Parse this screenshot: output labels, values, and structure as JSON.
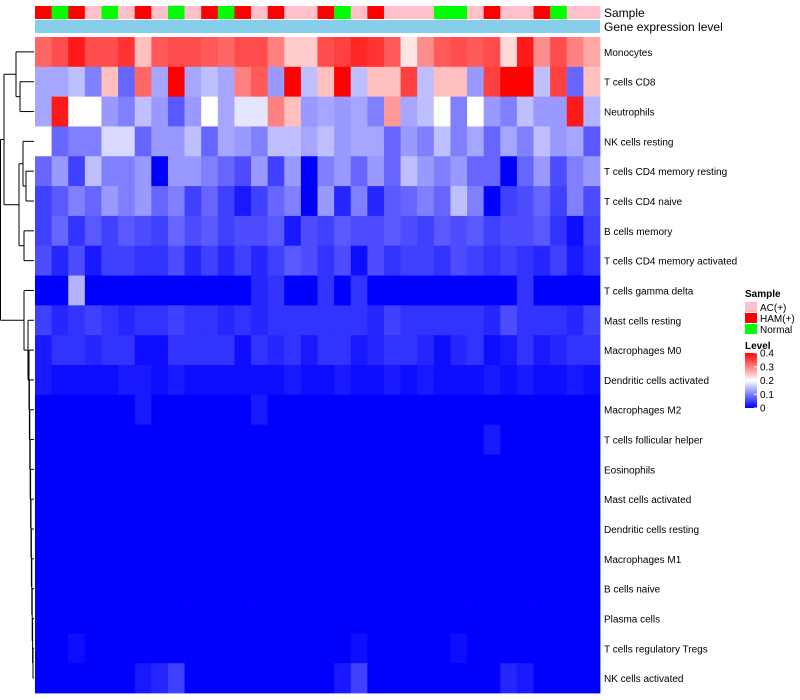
{
  "chart_data": {
    "type": "heatmap",
    "title": "",
    "annotations": [
      {
        "name": "Sample"
      },
      {
        "name": "Gene expression level"
      }
    ],
    "rows": [
      "Monocytes",
      "T cells CD8",
      "Neutrophils",
      "NK cells resting",
      "T cells CD4 memory resting",
      "T cells CD4 naive",
      "B cells memory",
      "T cells CD4 memory activated",
      "T cells gamma delta",
      "Mast cells resting",
      "Macrophages M0",
      "Dendritic cells activated",
      "Macrophages M2",
      "T cells follicular helper",
      "Eosinophils",
      "Mast cells activated",
      "Dendritic cells resting",
      "Macrophages M1",
      "B cells naive",
      "Plasma cells",
      "T cells regulatory  Tregs",
      "NK cells activated"
    ],
    "sample_groups": [
      "HAM(+)",
      "Normal",
      "HAM(+)",
      "AC(+)",
      "Normal",
      "AC(+)",
      "HAM(+)",
      "AC(+)",
      "Normal",
      "AC(+)",
      "HAM(+)",
      "Normal",
      "HAM(+)",
      "AC(+)",
      "HAM(+)",
      "AC(+)",
      "AC(+)",
      "HAM(+)",
      "Normal",
      "AC(+)",
      "HAM(+)",
      "AC(+)",
      "AC(+)",
      "AC(+)",
      "Normal",
      "Normal",
      "AC(+)",
      "HAM(+)",
      "AC(+)",
      "AC(+)",
      "HAM(+)",
      "Normal",
      "AC(+)",
      "AC(+)"
    ],
    "values": [
      [
        0.32,
        0.34,
        0.38,
        0.34,
        0.34,
        0.36,
        0.25,
        0.33,
        0.34,
        0.34,
        0.33,
        0.32,
        0.34,
        0.34,
        0.3,
        0.24,
        0.24,
        0.34,
        0.35,
        0.37,
        0.36,
        0.33,
        0.22,
        0.29,
        0.33,
        0.34,
        0.33,
        0.34,
        0.23,
        0.38,
        0.29,
        0.34,
        0.3,
        0.27
      ],
      [
        0.13,
        0.13,
        0.15,
        0.1,
        0.25,
        0.08,
        0.32,
        0.13,
        0.4,
        0.13,
        0.15,
        0.13,
        0.3,
        0.33,
        0.12,
        0.4,
        0.15,
        0.25,
        0.4,
        0.15,
        0.25,
        0.25,
        0.35,
        0.15,
        0.25,
        0.25,
        0.12,
        0.35,
        0.4,
        0.4,
        0.15,
        0.35,
        0.08,
        0.25
      ],
      [
        0.13,
        0.38,
        0.2,
        0.2,
        0.12,
        0.1,
        0.15,
        0.12,
        0.07,
        0.12,
        0.2,
        0.13,
        0.18,
        0.18,
        0.3,
        0.25,
        0.12,
        0.13,
        0.12,
        0.13,
        0.1,
        0.28,
        0.13,
        0.15,
        0.2,
        0.1,
        0.2,
        0.12,
        0.1,
        0.15,
        0.12,
        0.12,
        0.38,
        0.14
      ],
      [
        0.2,
        0.08,
        0.1,
        0.1,
        0.17,
        0.17,
        0.08,
        0.12,
        0.12,
        0.15,
        0.08,
        0.13,
        0.12,
        0.1,
        0.15,
        0.15,
        0.13,
        0.15,
        0.12,
        0.13,
        0.13,
        0.08,
        0.12,
        0.1,
        0.15,
        0.1,
        0.13,
        0.08,
        0.13,
        0.1,
        0.15,
        0.12,
        0.13,
        0.07
      ],
      [
        0.08,
        0.12,
        0.05,
        0.15,
        0.1,
        0.1,
        0.12,
        0.0,
        0.12,
        0.12,
        0.1,
        0.08,
        0.06,
        0.12,
        0.05,
        0.12,
        0.0,
        0.1,
        0.12,
        0.08,
        0.12,
        0.08,
        0.15,
        0.12,
        0.1,
        0.12,
        0.08,
        0.08,
        0.0,
        0.08,
        0.12,
        0.06,
        0.1,
        0.12
      ],
      [
        0.05,
        0.07,
        0.1,
        0.08,
        0.12,
        0.1,
        0.12,
        0.08,
        0.1,
        0.05,
        0.08,
        0.05,
        0.02,
        0.05,
        0.08,
        0.1,
        0.0,
        0.12,
        0.03,
        0.1,
        0.03,
        0.07,
        0.08,
        0.1,
        0.08,
        0.15,
        0.1,
        0.0,
        0.05,
        0.06,
        0.08,
        0.05,
        0.1,
        0.06
      ],
      [
        0.05,
        0.08,
        0.04,
        0.07,
        0.05,
        0.07,
        0.06,
        0.05,
        0.08,
        0.06,
        0.07,
        0.05,
        0.06,
        0.06,
        0.07,
        0.02,
        0.06,
        0.05,
        0.07,
        0.06,
        0.06,
        0.07,
        0.06,
        0.05,
        0.07,
        0.06,
        0.07,
        0.05,
        0.06,
        0.06,
        0.07,
        0.04,
        0.01,
        0.05
      ],
      [
        0.06,
        0.03,
        0.06,
        0.02,
        0.05,
        0.05,
        0.04,
        0.04,
        0.06,
        0.03,
        0.05,
        0.03,
        0.05,
        0.03,
        0.05,
        0.07,
        0.06,
        0.04,
        0.06,
        0.01,
        0.06,
        0.04,
        0.05,
        0.05,
        0.04,
        0.06,
        0.05,
        0.04,
        0.05,
        0.04,
        0.03,
        0.05,
        0.02,
        0.04
      ],
      [
        0.0,
        0.0,
        0.14,
        0.0,
        0.0,
        0.0,
        0.0,
        0.0,
        0.0,
        0.0,
        0.0,
        0.0,
        0.0,
        0.03,
        0.04,
        0.0,
        0.0,
        0.04,
        0.0,
        0.04,
        0.0,
        0.0,
        0.0,
        0.0,
        0.0,
        0.0,
        0.0,
        0.0,
        0.0,
        0.04,
        0.0,
        0.0,
        0.0,
        0.0
      ],
      [
        0.05,
        0.03,
        0.04,
        0.05,
        0.04,
        0.03,
        0.04,
        0.04,
        0.05,
        0.04,
        0.04,
        0.03,
        0.04,
        0.03,
        0.04,
        0.04,
        0.04,
        0.04,
        0.04,
        0.04,
        0.03,
        0.05,
        0.04,
        0.04,
        0.04,
        0.04,
        0.04,
        0.03,
        0.06,
        0.04,
        0.04,
        0.04,
        0.03,
        0.05
      ],
      [
        0.02,
        0.04,
        0.04,
        0.03,
        0.04,
        0.04,
        0.01,
        0.01,
        0.04,
        0.04,
        0.04,
        0.04,
        0.01,
        0.04,
        0.03,
        0.04,
        0.02,
        0.04,
        0.04,
        0.02,
        0.03,
        0.04,
        0.04,
        0.03,
        0.01,
        0.03,
        0.04,
        0.01,
        0.02,
        0.04,
        0.02,
        0.03,
        0.04,
        0.04
      ],
      [
        0.02,
        0.01,
        0.01,
        0.01,
        0.01,
        0.02,
        0.02,
        0.01,
        0.02,
        0.01,
        0.01,
        0.01,
        0.01,
        0.01,
        0.01,
        0.02,
        0.01,
        0.01,
        0.02,
        0.01,
        0.01,
        0.02,
        0.01,
        0.02,
        0.01,
        0.01,
        0.01,
        0.02,
        0.01,
        0.02,
        0.01,
        0.01,
        0.02,
        0.01
      ],
      [
        0.0,
        0.0,
        0.0,
        0.0,
        0.0,
        0.0,
        0.02,
        0.0,
        0.0,
        0.0,
        0.0,
        0.0,
        0.0,
        0.02,
        0.0,
        0.0,
        0.0,
        0.0,
        0.0,
        0.0,
        0.0,
        0.0,
        0.0,
        0.0,
        0.0,
        0.0,
        0.0,
        0.0,
        0.0,
        0.0,
        0.0,
        0.0,
        0.0,
        0.0
      ],
      [
        0.0,
        0.0,
        0.0,
        0.0,
        0.0,
        0.0,
        0.0,
        0.0,
        0.0,
        0.0,
        0.0,
        0.0,
        0.0,
        0.0,
        0.0,
        0.0,
        0.0,
        0.0,
        0.0,
        0.0,
        0.0,
        0.0,
        0.0,
        0.0,
        0.0,
        0.0,
        0.0,
        0.02,
        0.0,
        0.0,
        0.0,
        0.0,
        0.0,
        0.0
      ],
      [
        0.0,
        0.0,
        0.0,
        0.0,
        0.0,
        0.0,
        0.0,
        0.0,
        0.0,
        0.0,
        0.0,
        0.0,
        0.0,
        0.0,
        0.0,
        0.0,
        0.0,
        0.0,
        0.0,
        0.0,
        0.0,
        0.0,
        0.0,
        0.0,
        0.0,
        0.0,
        0.0,
        0.0,
        0.0,
        0.0,
        0.0,
        0.0,
        0.0,
        0.0
      ],
      [
        0.0,
        0.0,
        0.0,
        0.0,
        0.0,
        0.0,
        0.0,
        0.0,
        0.0,
        0.0,
        0.0,
        0.0,
        0.0,
        0.0,
        0.0,
        0.0,
        0.0,
        0.0,
        0.0,
        0.0,
        0.0,
        0.0,
        0.0,
        0.0,
        0.0,
        0.0,
        0.0,
        0.0,
        0.0,
        0.0,
        0.0,
        0.0,
        0.0,
        0.0
      ],
      [
        0.0,
        0.0,
        0.0,
        0.0,
        0.0,
        0.0,
        0.0,
        0.0,
        0.0,
        0.0,
        0.0,
        0.0,
        0.0,
        0.0,
        0.0,
        0.0,
        0.0,
        0.0,
        0.0,
        0.0,
        0.0,
        0.0,
        0.0,
        0.0,
        0.0,
        0.0,
        0.0,
        0.0,
        0.0,
        0.0,
        0.0,
        0.0,
        0.0,
        0.0
      ],
      [
        0.0,
        0.0,
        0.0,
        0.0,
        0.0,
        0.0,
        0.0,
        0.0,
        0.0,
        0.0,
        0.0,
        0.0,
        0.0,
        0.0,
        0.0,
        0.0,
        0.0,
        0.0,
        0.0,
        0.0,
        0.0,
        0.0,
        0.0,
        0.0,
        0.0,
        0.0,
        0.0,
        0.0,
        0.0,
        0.0,
        0.0,
        0.0,
        0.0,
        0.0
      ],
      [
        0.0,
        0.0,
        0.0,
        0.0,
        0.0,
        0.0,
        0.0,
        0.0,
        0.0,
        0.0,
        0.0,
        0.0,
        0.0,
        0.0,
        0.0,
        0.0,
        0.0,
        0.0,
        0.0,
        0.0,
        0.0,
        0.0,
        0.0,
        0.0,
        0.0,
        0.0,
        0.0,
        0.0,
        0.0,
        0.0,
        0.0,
        0.0,
        0.0,
        0.0
      ],
      [
        0.0,
        0.0,
        0.0,
        0.0,
        0.0,
        0.0,
        0.0,
        0.0,
        0.0,
        0.0,
        0.0,
        0.0,
        0.0,
        0.0,
        0.0,
        0.0,
        0.0,
        0.0,
        0.0,
        0.0,
        0.0,
        0.0,
        0.0,
        0.0,
        0.0,
        0.0,
        0.0,
        0.0,
        0.0,
        0.0,
        0.0,
        0.0,
        0.0,
        0.0
      ],
      [
        0.0,
        0.0,
        0.01,
        0.0,
        0.0,
        0.0,
        0.0,
        0.0,
        0.0,
        0.0,
        0.0,
        0.0,
        0.0,
        0.0,
        0.0,
        0.0,
        0.0,
        0.0,
        0.0,
        0.01,
        0.0,
        0.0,
        0.0,
        0.0,
        0.0,
        0.01,
        0.0,
        0.0,
        0.0,
        0.0,
        0.0,
        0.0,
        0.0,
        0.0
      ],
      [
        0.0,
        0.0,
        0.0,
        0.0,
        0.0,
        0.0,
        0.02,
        0.03,
        0.05,
        0.0,
        0.0,
        0.0,
        0.0,
        0.0,
        0.0,
        0.0,
        0.0,
        0.0,
        0.02,
        0.05,
        0.0,
        0.0,
        0.0,
        0.0,
        0.0,
        0.0,
        0.0,
        0.0,
        0.03,
        0.02,
        0.0,
        0.0,
        0.0,
        0.0
      ]
    ],
    "legends": {
      "sample": {
        "title": "Sample",
        "entries": [
          {
            "label": "AC(+)",
            "color": "#ffc0cb"
          },
          {
            "label": "HAM(+)",
            "color": "#ff0000"
          },
          {
            "label": "Normal",
            "color": "#00ff00"
          }
        ]
      },
      "level": {
        "title": "Level",
        "ticks": [
          0.4,
          0.3,
          0.2,
          0.1,
          0
        ],
        "tick_labels": [
          "0.4",
          "0.3",
          "0.2",
          "0.1",
          "0"
        ],
        "range": [
          0,
          0.4
        ]
      }
    },
    "colors": {
      "low": "#0000ff",
      "mid": "#ffffff",
      "high": "#ff0000",
      "mid_value": 0.2,
      "expression_bar": "#87ceeb"
    }
  }
}
